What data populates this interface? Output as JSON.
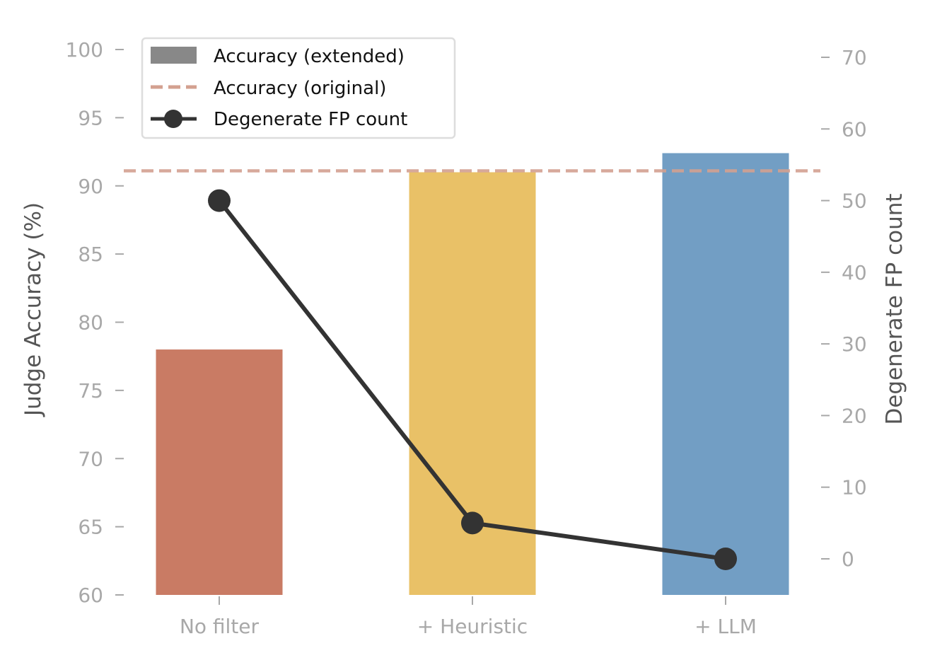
{
  "chart_data": {
    "type": "bar",
    "categories": [
      "No filter",
      "+ Heuristic",
      "+ LLM"
    ],
    "series": [
      {
        "name": "Accuracy (extended)",
        "type": "bar",
        "axis": "left",
        "values": [
          78,
          91,
          92.4
        ]
      },
      {
        "name": "Accuracy (original)",
        "type": "hline",
        "axis": "left",
        "value": 91.1
      },
      {
        "name": "Degenerate FP count",
        "type": "line",
        "axis": "right",
        "values": [
          50,
          5,
          0
        ]
      }
    ],
    "bar_colors": [
      "#c97b64",
      "#e9c167",
      "#729ec4"
    ],
    "line_color": "#333333",
    "hline_color": "#d3a090",
    "ylabel": "Judge Accuracy (%)",
    "y2label": "Degenerate FP count",
    "ylim": [
      60,
      100
    ],
    "y2lim": [
      -5,
      73
    ],
    "yticks": [
      60,
      65,
      70,
      75,
      80,
      85,
      90,
      95,
      100
    ],
    "y2ticks": [
      0,
      10,
      20,
      30,
      40,
      50,
      60,
      70
    ],
    "legend": {
      "placement": "top-left",
      "entries": [
        "Accuracy (extended)",
        "Accuracy (original)",
        "Degenerate FP count"
      ]
    },
    "grid": false
  }
}
